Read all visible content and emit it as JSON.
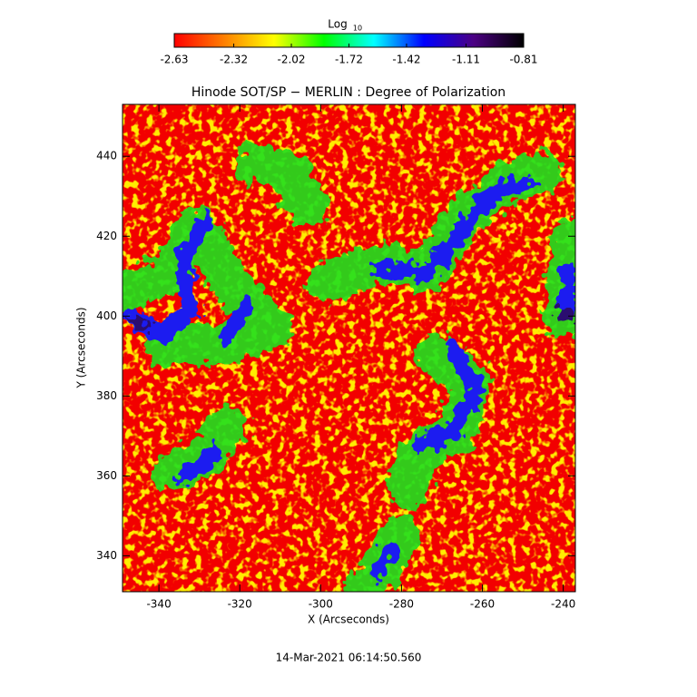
{
  "chart_data": {
    "type": "heatmap",
    "title": "Hinode SOT/SP − MERLIN : Degree of Polarization",
    "x_label": "X (Arcseconds)",
    "y_label": "Y (Arcseconds)",
    "timestamp": "14-Mar-2021 06:14:50.560",
    "xlim": [
      -349,
      -237
    ],
    "ylim": [
      331,
      453
    ],
    "xticks": [
      -340,
      -320,
      -300,
      -280,
      -260,
      -240
    ],
    "yticks": [
      340,
      360,
      380,
      400,
      420,
      440
    ],
    "colorbar": {
      "label": "Log",
      "label_sub": "10",
      "lim": [
        -2.63,
        -0.81
      ],
      "ticks": [
        -2.63,
        -2.32,
        -2.02,
        -1.72,
        -1.42,
        -1.11,
        -0.81
      ],
      "colors": [
        "#ff0000",
        "#ff7f00",
        "#ffff00",
        "#00ff00",
        "#00ffff",
        "#0000ff",
        "#4b0082",
        "#000000"
      ]
    }
  }
}
